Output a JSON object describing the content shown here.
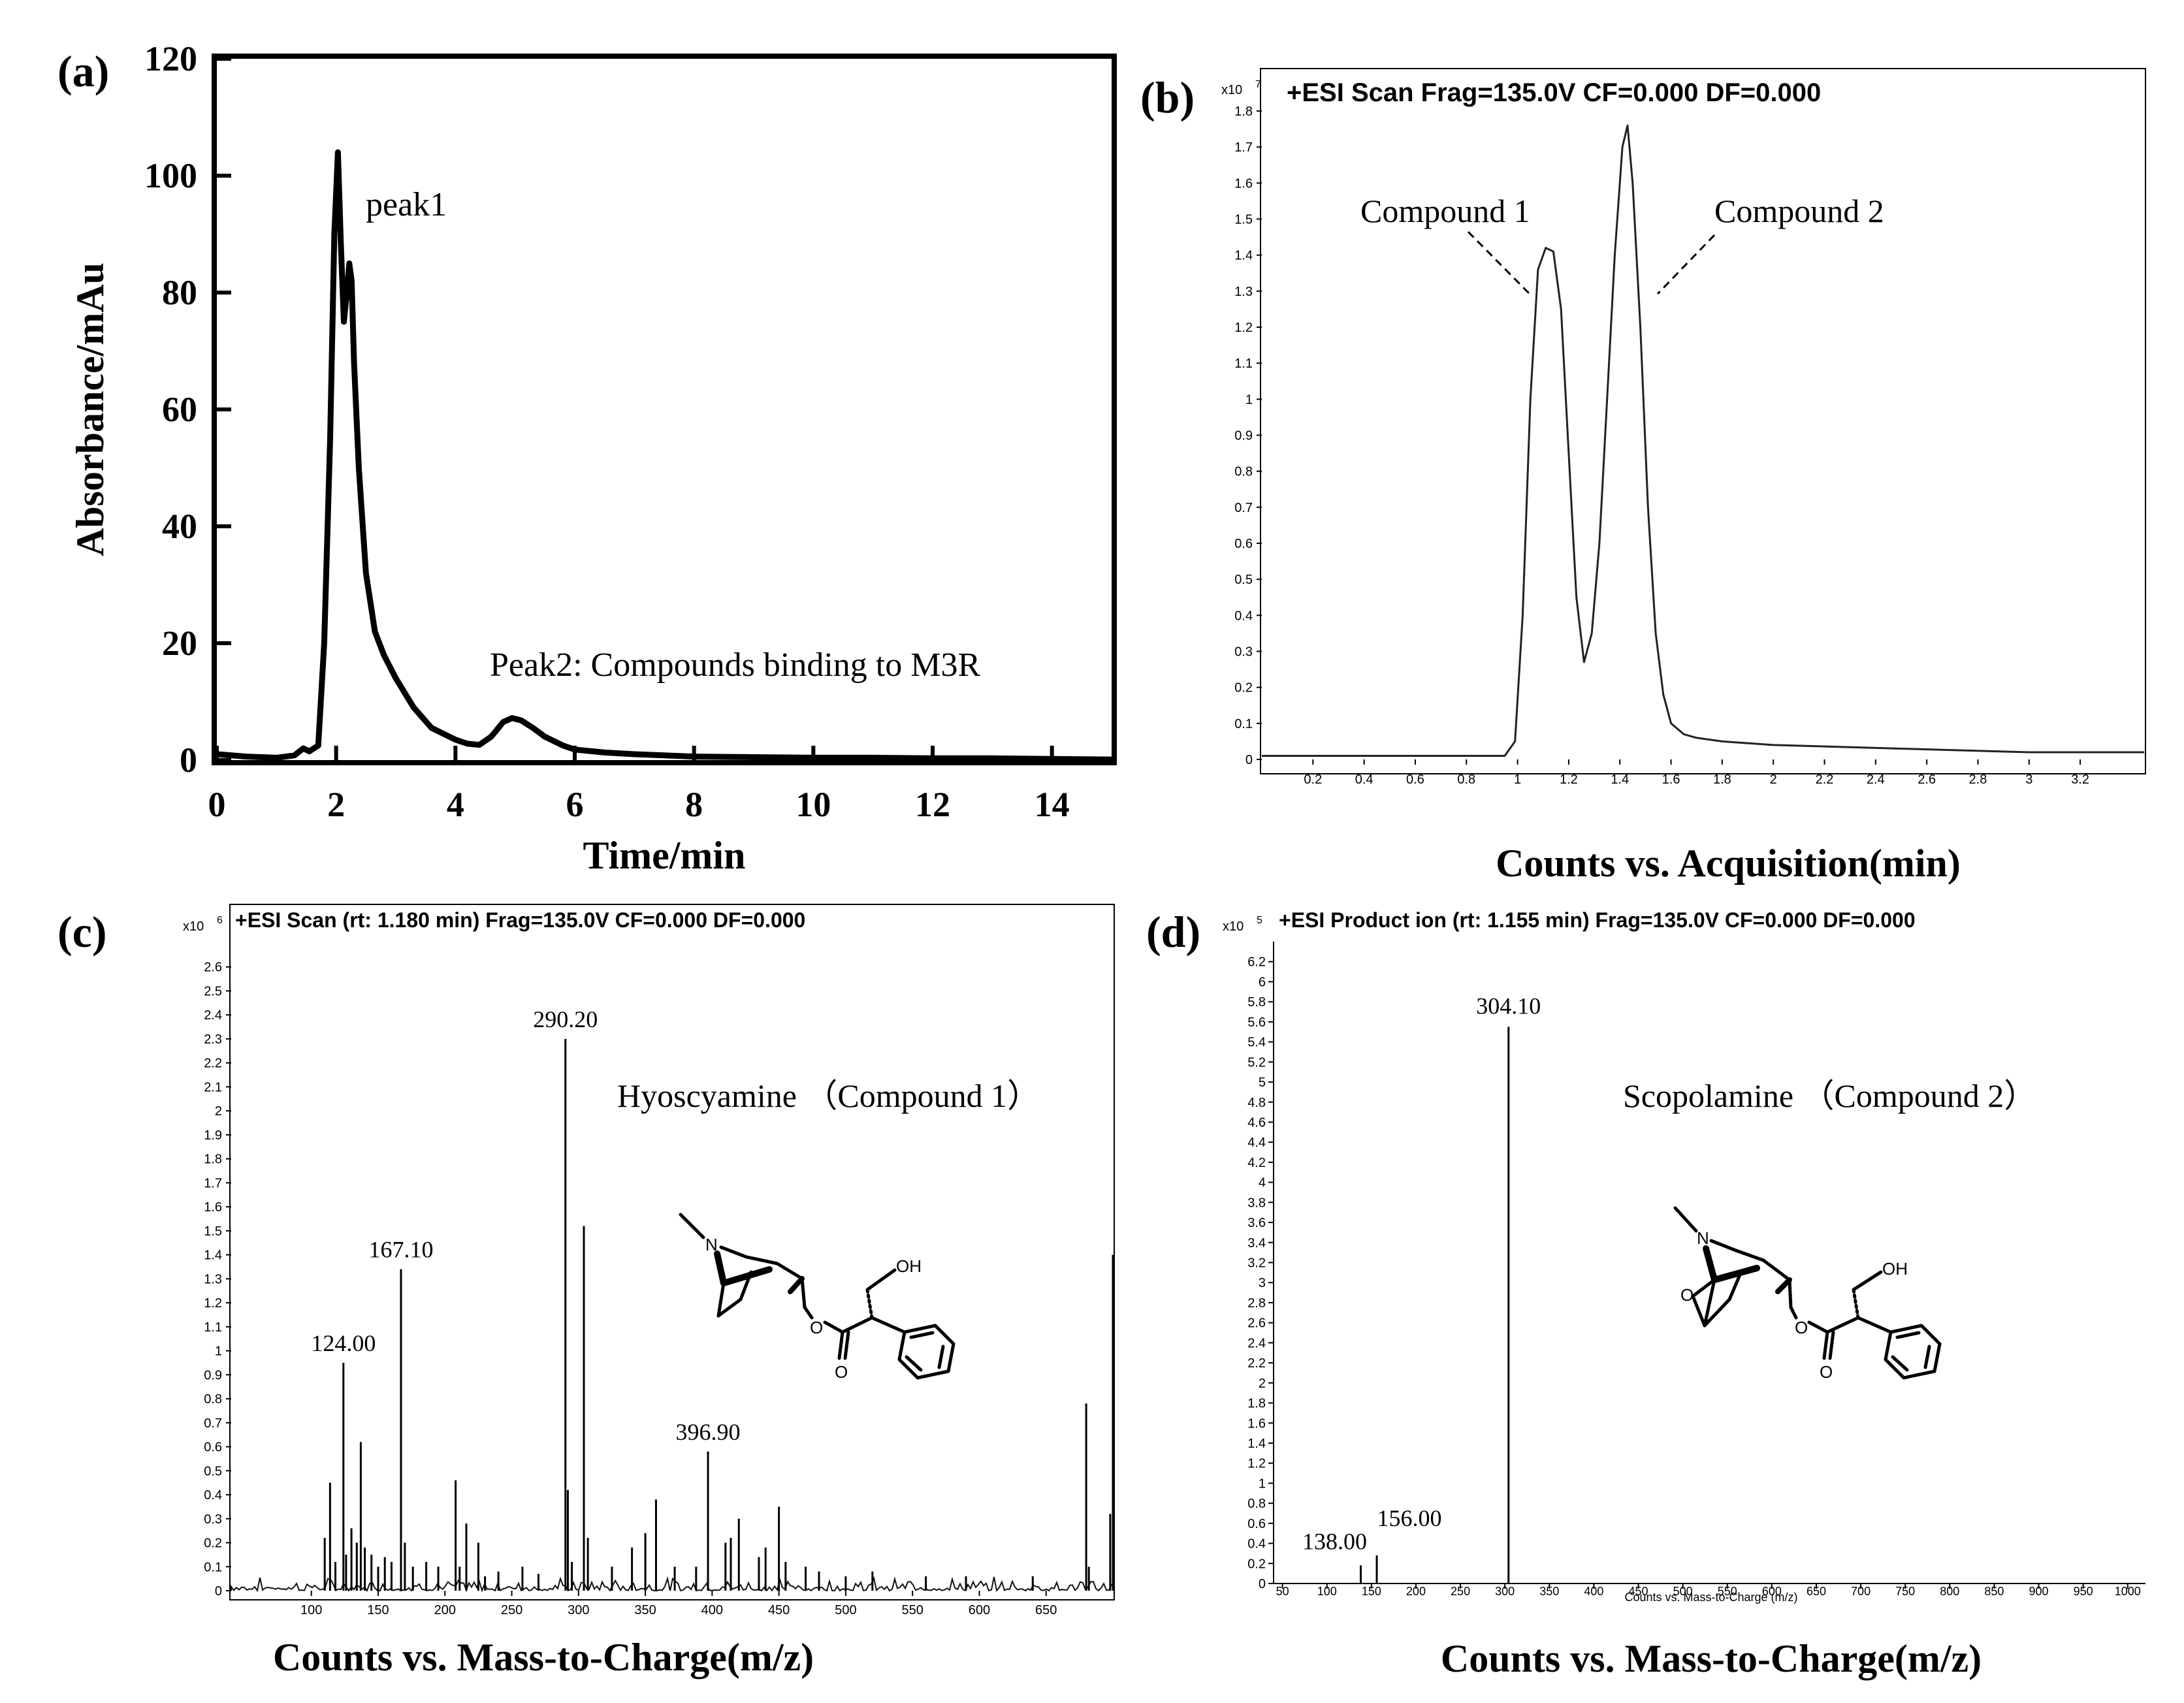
{
  "chart_data": [
    {
      "panel": "(a)",
      "type": "line",
      "title": "",
      "xlabel": "Time/min",
      "ylabel": "Absorbance/mAu",
      "xlim": [
        0,
        15
      ],
      "ylim": [
        0,
        120
      ],
      "xticks": [
        0,
        2,
        4,
        6,
        8,
        10,
        12,
        14
      ],
      "yticks": [
        0,
        20,
        40,
        60,
        80,
        100,
        120
      ],
      "grid": false,
      "x": [
        0,
        0.5,
        1.0,
        1.3,
        1.45,
        1.55,
        1.7,
        1.8,
        1.9,
        1.97,
        2.03,
        2.08,
        2.13,
        2.18,
        2.22,
        2.26,
        2.3,
        2.38,
        2.5,
        2.65,
        2.8,
        3.0,
        3.3,
        3.6,
        4.0,
        4.2,
        4.4,
        4.6,
        4.8,
        4.95,
        5.1,
        5.3,
        5.5,
        5.8,
        6.0,
        6.5,
        7.0,
        8.0,
        9.0,
        10.0,
        11.0,
        12.0,
        13.0,
        14.0,
        15.0
      ],
      "y": [
        1.0,
        0.6,
        0.4,
        0.8,
        2.0,
        1.5,
        2.5,
        20.0,
        55.0,
        90.0,
        104.0,
        88.0,
        75.0,
        80.0,
        85.0,
        82.0,
        68.0,
        50.0,
        32.0,
        22.0,
        18.0,
        14.0,
        9.0,
        5.5,
        3.5,
        2.8,
        2.6,
        4.0,
        6.5,
        7.2,
        6.8,
        5.5,
        4.0,
        2.5,
        1.8,
        1.3,
        1.0,
        0.6,
        0.5,
        0.4,
        0.4,
        0.3,
        0.3,
        0.2,
        0.1
      ],
      "annotations": [
        "peak1",
        "Peak2: Compounds binding to M3R"
      ]
    },
    {
      "panel": "(b)",
      "type": "line",
      "title": "+ESI Scan Frag=135.0V CF=0.000 DF=0.000",
      "xlabel": "Counts vs. Acquisition(min)",
      "ylabel": "",
      "y_multiplier": "x10",
      "y_exponent": "7",
      "xlim": [
        0,
        3.45
      ],
      "ylim": [
        0,
        1.8
      ],
      "xticks": [
        "0.2",
        "0.4",
        "0.6",
        "0.8",
        "1",
        "1.2",
        "1.4",
        "1.6",
        "1.8",
        "2",
        "2.2",
        "2.4",
        "2.6",
        "2.8",
        "3",
        "3.2"
      ],
      "yticks": [
        "0",
        "0.1",
        "0.2",
        "0.3",
        "0.4",
        "0.5",
        "0.6",
        "0.7",
        "0.8",
        "0.9",
        "1",
        "1.1",
        "1.2",
        "1.3",
        "1.4",
        "1.5",
        "1.6",
        "1.7",
        "1.8"
      ],
      "grid": false,
      "x": [
        0,
        0.5,
        0.95,
        0.99,
        1.02,
        1.05,
        1.08,
        1.11,
        1.14,
        1.17,
        1.2,
        1.23,
        1.26,
        1.29,
        1.32,
        1.35,
        1.38,
        1.41,
        1.43,
        1.45,
        1.48,
        1.51,
        1.54,
        1.57,
        1.6,
        1.65,
        1.7,
        1.8,
        2.0,
        2.5,
        3.0,
        3.45
      ],
      "y": [
        0.01,
        0.01,
        0.01,
        0.05,
        0.4,
        1.0,
        1.36,
        1.42,
        1.41,
        1.25,
        0.85,
        0.45,
        0.27,
        0.35,
        0.6,
        1.0,
        1.4,
        1.7,
        1.76,
        1.6,
        1.2,
        0.7,
        0.35,
        0.18,
        0.1,
        0.07,
        0.06,
        0.05,
        0.04,
        0.03,
        0.02,
        0.02
      ],
      "annotations": [
        "Compound 1",
        "Compound 2"
      ]
    },
    {
      "panel": "(c)",
      "type": "bar",
      "title": "+ESI Scan (rt: 1.180 min) Frag=135.0V CF=0.000 DF=0.000",
      "xlabel": "Counts vs. Mass-to-Charge(m/z)",
      "ylabel": "",
      "y_multiplier": "x10",
      "y_exponent": "6",
      "xlim": [
        40,
        700
      ],
      "ylim": [
        0,
        2.7
      ],
      "xticks": [
        "100",
        "150",
        "200",
        "250",
        "300",
        "350",
        "400",
        "450",
        "500",
        "550",
        "600",
        "650"
      ],
      "yticks": [
        "0",
        "0.1",
        "0.2",
        "0.3",
        "0.4",
        "0.5",
        "0.6",
        "0.7",
        "0.8",
        "0.9",
        "1",
        "1.1",
        "1.2",
        "1.3",
        "1.4",
        "1.5",
        "1.6",
        "1.7",
        "1.8",
        "1.9",
        "2",
        "2.1",
        "2.2",
        "2.3",
        "2.4",
        "2.5",
        "2.6"
      ],
      "grid": false,
      "x": [
        110,
        114,
        118,
        124,
        126,
        130,
        134,
        137,
        140,
        145,
        150,
        155,
        160,
        167.1,
        170,
        176,
        186,
        195,
        208,
        211,
        216,
        225,
        230,
        240,
        258,
        270,
        290.2,
        292,
        295,
        304,
        307,
        325,
        340,
        350,
        358,
        372,
        388,
        396.9,
        410,
        414,
        420,
        435,
        440,
        450,
        455,
        470,
        480,
        500,
        520,
        560,
        590,
        640,
        680,
        682,
        698,
        700
      ],
      "y": [
        0.22,
        0.45,
        0.12,
        0.95,
        0.15,
        0.26,
        0.2,
        0.62,
        0.18,
        0.15,
        0.1,
        0.14,
        0.12,
        1.34,
        0.2,
        0.1,
        0.12,
        0.1,
        0.46,
        0.1,
        0.28,
        0.2,
        0.06,
        0.08,
        0.1,
        0.07,
        2.3,
        0.42,
        0.12,
        1.52,
        0.22,
        0.1,
        0.18,
        0.24,
        0.38,
        0.1,
        0.1,
        0.58,
        0.2,
        0.22,
        0.3,
        0.14,
        0.18,
        0.35,
        0.12,
        0.1,
        0.08,
        0.06,
        0.08,
        0.06,
        0.06,
        0.06,
        0.78,
        0.1,
        0.32,
        1.4
      ],
      "peak_labels": [
        "124.00",
        "167.10",
        "290.20",
        "396.90"
      ],
      "annotations": [
        "Hyoscyamine （Compound 1）"
      ]
    },
    {
      "panel": "(d)",
      "type": "bar",
      "title": "+ESI Product ion (rt: 1.155 min) Frag=135.0V CF=0.000 DF=0.000",
      "xlabel": "Counts vs. Mass-to-Charge(m/z)",
      "xlabel_small": "Counts vs. Mass-to-Charge (m/z)",
      "ylabel": "",
      "y_multiplier": "x10",
      "y_exponent": "5",
      "xlim": [
        40,
        1020
      ],
      "ylim": [
        0,
        6.4
      ],
      "xticks": [
        "50",
        "100",
        "150",
        "200",
        "250",
        "300",
        "350",
        "400",
        "450",
        "500",
        "550",
        "600",
        "650",
        "700",
        "750",
        "800",
        "850",
        "900",
        "950",
        "1000"
      ],
      "yticks": [
        "0",
        "0.2",
        "0.4",
        "0.6",
        "0.8",
        "1",
        "1.2",
        "1.4",
        "1.6",
        "1.8",
        "2",
        "2.2",
        "2.4",
        "2.6",
        "2.8",
        "3",
        "3.2",
        "3.4",
        "3.6",
        "3.8",
        "4",
        "4.2",
        "4.4",
        "4.6",
        "4.8",
        "5",
        "5.2",
        "5.4",
        "5.6",
        "5.8",
        "6",
        "6.2"
      ],
      "grid": false,
      "x": [
        138.0,
        156.0,
        304.1
      ],
      "y": [
        0.18,
        0.28,
        5.55
      ],
      "peak_labels": [
        "138.00",
        "156.00",
        "304.10"
      ],
      "annotations": [
        "Scopolamine （Compound 2）"
      ]
    }
  ],
  "figure": {
    "panel_labels": [
      "(a)",
      "(b)",
      "(c)",
      "(d)"
    ],
    "structure_labels": {
      "c": [
        "N",
        "O",
        "O",
        "OH"
      ],
      "d": [
        "N",
        "O",
        "O",
        "O",
        "OH"
      ]
    }
  }
}
